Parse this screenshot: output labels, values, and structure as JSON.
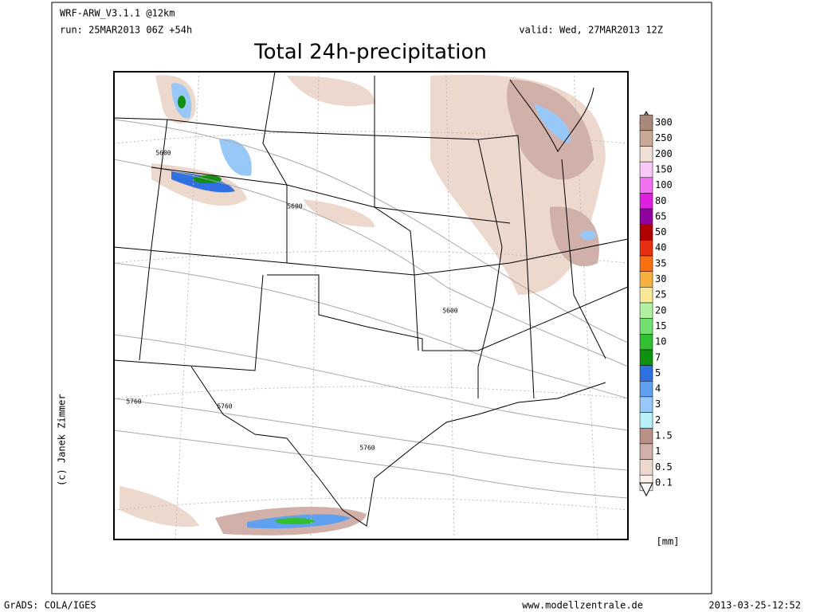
{
  "header": {
    "model": "WRF-ARW_V3.1.1 @12km",
    "run": "run: 25MAR2013 06Z +54h",
    "valid": "valid: Wed, 27MAR2013 12Z",
    "title": "Total 24h-precipitation"
  },
  "map": {
    "contour_labels": [
      "5600",
      "5600",
      "5600",
      "5760",
      "5760",
      "5760"
    ]
  },
  "legend": {
    "unit": "[mm]",
    "levels": [
      {
        "label": "300",
        "color": "#a88878"
      },
      {
        "label": "250",
        "color": "#c8a898"
      },
      {
        "label": "200",
        "color": "#f0e0d8"
      },
      {
        "label": "150",
        "color": "#f8c8f8"
      },
      {
        "label": "100",
        "color": "#f070f0"
      },
      {
        "label": "80",
        "color": "#e020e0"
      },
      {
        "label": "65",
        "color": "#9000a0"
      },
      {
        "label": "50",
        "color": "#b00000"
      },
      {
        "label": "40",
        "color": "#e83010"
      },
      {
        "label": "35",
        "color": "#f87010"
      },
      {
        "label": "30",
        "color": "#f8b040"
      },
      {
        "label": "25",
        "color": "#f8e898"
      },
      {
        "label": "20",
        "color": "#b0f0a0"
      },
      {
        "label": "15",
        "color": "#70e070"
      },
      {
        "label": "10",
        "color": "#30c030"
      },
      {
        "label": "7",
        "color": "#109010"
      },
      {
        "label": "5",
        "color": "#3070e0"
      },
      {
        "label": "4",
        "color": "#60a0f0"
      },
      {
        "label": "3",
        "color": "#98c8f8"
      },
      {
        "label": "2",
        "color": "#b8f0f8"
      },
      {
        "label": "1.5",
        "color": "#b89088"
      },
      {
        "label": "1",
        "color": "#d0b0a8"
      },
      {
        "label": "0.5",
        "color": "#ecd8cc"
      },
      {
        "label": "0.1",
        "color": "#fbf0ea"
      }
    ]
  },
  "footer": {
    "credit": "(c) Janek Zimmer",
    "software": "GrADS: COLA/IGES",
    "site": "www.modellzentrale.de",
    "timestamp": "2013-03-25-12:52"
  }
}
